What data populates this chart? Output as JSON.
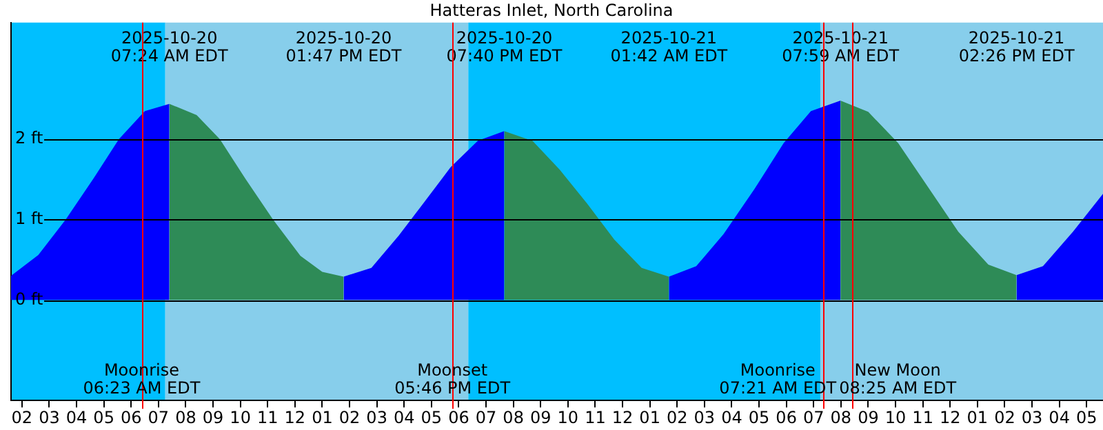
{
  "chart_data": {
    "type": "area",
    "title": "Hatteras Inlet, North Carolina",
    "series": [
      {
        "color": "#0000ff",
        "x": [
          "2025-10-20T01:36",
          "2025-10-20T02:36",
          "2025-10-20T03:36",
          "2025-10-20T04:36",
          "2025-10-20T05:33",
          "2025-10-20T06:30",
          "2025-10-20T07:24"
        ],
        "values": [
          0.3,
          0.56,
          1.0,
          1.5,
          2.0,
          2.35,
          2.44
        ]
      },
      {
        "color": "#2e8b57",
        "x": [
          "2025-10-20T07:24",
          "2025-10-20T08:24",
          "2025-10-20T09:15",
          "2025-10-20T10:12",
          "2025-10-20T11:12",
          "2025-10-20T12:12",
          "2025-10-20T13:00",
          "2025-10-20T13:47"
        ],
        "values": [
          2.44,
          2.3,
          2.0,
          1.5,
          1.0,
          0.55,
          0.35,
          0.29
        ]
      },
      {
        "color": "#0000ff",
        "x": [
          "2025-10-20T13:47",
          "2025-10-20T14:48",
          "2025-10-20T15:48",
          "2025-10-20T16:42",
          "2025-10-20T17:42",
          "2025-10-20T18:42",
          "2025-10-20T19:40"
        ],
        "values": [
          0.29,
          0.4,
          0.8,
          1.2,
          1.65,
          1.98,
          2.1
        ]
      },
      {
        "color": "#2e8b57",
        "x": [
          "2025-10-20T19:40",
          "2025-10-20T20:42",
          "2025-10-20T21:42",
          "2025-10-20T22:42",
          "2025-10-20T23:42",
          "2025-10-21T00:42",
          "2025-10-21T01:42"
        ],
        "values": [
          2.1,
          1.98,
          1.62,
          1.2,
          0.75,
          0.4,
          0.29
        ]
      },
      {
        "color": "#0000ff",
        "x": [
          "2025-10-21T01:42",
          "2025-10-21T02:42",
          "2025-10-21T03:42",
          "2025-10-21T04:50",
          "2025-10-21T05:54",
          "2025-10-21T06:54",
          "2025-10-21T07:59"
        ],
        "values": [
          0.29,
          0.42,
          0.82,
          1.38,
          1.95,
          2.35,
          2.48
        ]
      },
      {
        "color": "#2e8b57",
        "x": [
          "2025-10-21T07:59",
          "2025-10-21T09:00",
          "2025-10-21T10:06",
          "2025-10-21T11:12",
          "2025-10-21T12:18",
          "2025-10-21T13:24",
          "2025-10-21T14:26"
        ],
        "values": [
          2.48,
          2.34,
          1.95,
          1.4,
          0.85,
          0.44,
          0.31
        ]
      },
      {
        "color": "#0000ff",
        "x": [
          "2025-10-21T14:26",
          "2025-10-21T15:24",
          "2025-10-21T16:30",
          "2025-10-21T17:36"
        ],
        "values": [
          0.31,
          0.42,
          0.85,
          1.32
        ]
      }
    ],
    "bands": [
      {
        "axis": "x",
        "from": "2025-10-20T01:36",
        "to": "2025-10-20T07:15",
        "color": "#00bfff"
      },
      {
        "axis": "x",
        "from": "2025-10-20T07:15",
        "to": "2025-10-20T18:21",
        "color": "#87ceeb"
      },
      {
        "axis": "x",
        "from": "2025-10-20T18:21",
        "to": "2025-10-21T07:15",
        "color": "#00bfff"
      },
      {
        "axis": "x",
        "from": "2025-10-21T07:15",
        "to": "2025-10-21T17:36",
        "color": "#87ceeb"
      }
    ],
    "ref_lines": [
      {
        "axis": "x",
        "value": "2025-10-20T06:23",
        "label": "Moonrise\n06:23 AM EDT",
        "color": "#ff0000"
      },
      {
        "axis": "x",
        "value": "2025-10-20T17:46",
        "label": "Moonset\n05:46 PM EDT",
        "color": "#ff0000"
      },
      {
        "axis": "x",
        "value": "2025-10-21T07:21",
        "label": "Moonrise\n07:21 AM EDT",
        "color": "#ff0000"
      },
      {
        "axis": "x",
        "value": "2025-10-21T08:25",
        "label": "New Moon\n08:25 AM EDT",
        "color": "#ff0000"
      }
    ],
    "annotations": [
      "2025-10-20\n07:24 AM EDT",
      "2025-10-20\n01:47 PM EDT",
      "2025-10-20\n07:40 PM EDT",
      "2025-10-21\n01:42 AM EDT",
      "2025-10-21\n07:59 AM EDT",
      "2025-10-21\n02:26 PM EDT"
    ],
    "xlim": [
      "2025-10-20T01:36",
      "2025-10-21T17:36"
    ],
    "xticks": [
      {
        "value": "2025-10-20T02:00",
        "label": "02"
      },
      {
        "value": "2025-10-20T03:00",
        "label": "03"
      },
      {
        "value": "2025-10-20T04:00",
        "label": "04"
      },
      {
        "value": "2025-10-20T05:00",
        "label": "05"
      },
      {
        "value": "2025-10-20T06:00",
        "label": "06"
      },
      {
        "value": "2025-10-20T07:00",
        "label": "07"
      },
      {
        "value": "2025-10-20T08:00",
        "label": "08"
      },
      {
        "value": "2025-10-20T09:00",
        "label": "09"
      },
      {
        "value": "2025-10-20T10:00",
        "label": "10"
      },
      {
        "value": "2025-10-20T11:00",
        "label": "11"
      },
      {
        "value": "2025-10-20T12:00",
        "label": "12"
      },
      {
        "value": "2025-10-20T13:00",
        "label": "01"
      },
      {
        "value": "2025-10-20T14:00",
        "label": "02"
      },
      {
        "value": "2025-10-20T15:00",
        "label": "03"
      },
      {
        "value": "2025-10-20T16:00",
        "label": "04"
      },
      {
        "value": "2025-10-20T17:00",
        "label": "05"
      },
      {
        "value": "2025-10-20T18:00",
        "label": "06"
      },
      {
        "value": "2025-10-20T19:00",
        "label": "07"
      },
      {
        "value": "2025-10-20T20:00",
        "label": "08"
      },
      {
        "value": "2025-10-20T21:00",
        "label": "09"
      },
      {
        "value": "2025-10-20T22:00",
        "label": "10"
      },
      {
        "value": "2025-10-20T23:00",
        "label": "11"
      },
      {
        "value": "2025-10-21T00:00",
        "label": "12"
      },
      {
        "value": "2025-10-21T01:00",
        "label": "01"
      },
      {
        "value": "2025-10-21T02:00",
        "label": "02"
      },
      {
        "value": "2025-10-21T03:00",
        "label": "03"
      },
      {
        "value": "2025-10-21T04:00",
        "label": "04"
      },
      {
        "value": "2025-10-21T05:00",
        "label": "05"
      },
      {
        "value": "2025-10-21T06:00",
        "label": "06"
      },
      {
        "value": "2025-10-21T07:00",
        "label": "07"
      },
      {
        "value": "2025-10-21T08:00",
        "label": "08"
      },
      {
        "value": "2025-10-21T09:00",
        "label": "09"
      },
      {
        "value": "2025-10-21T10:00",
        "label": "10"
      },
      {
        "value": "2025-10-21T11:00",
        "label": "11"
      },
      {
        "value": "2025-10-21T12:00",
        "label": "12"
      },
      {
        "value": "2025-10-21T13:00",
        "label": "01"
      },
      {
        "value": "2025-10-21T14:00",
        "label": "02"
      },
      {
        "value": "2025-10-21T15:00",
        "label": "03"
      },
      {
        "value": "2025-10-21T16:00",
        "label": "04"
      },
      {
        "value": "2025-10-21T17:00",
        "label": "05"
      }
    ],
    "ylim": [
      -1.25,
      3.45
    ],
    "yticks": [
      {
        "value": 0,
        "label": "0 ft"
      },
      {
        "value": 1,
        "label": "1 ft"
      },
      {
        "value": 2,
        "label": "2 ft"
      }
    ],
    "grid": "y",
    "legend": false
  }
}
